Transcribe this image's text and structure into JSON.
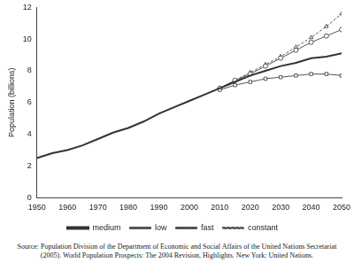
{
  "chart_data": {
    "type": "line",
    "y_label": "Population (billions)",
    "source": "Source: Population Division of the Department of Economic and Social Affairs of the United Nations Secretariat (2005). World Population Prospects: The 2004 Revision, Highlights. New York: United Nations.",
    "x": [
      1950,
      1955,
      1960,
      1965,
      1970,
      1975,
      1980,
      1985,
      1990,
      1995,
      2000,
      2005,
      2010,
      2015,
      2020,
      2025,
      2030,
      2035,
      2040,
      2045,
      2050
    ],
    "series": [
      {
        "name": "medium",
        "color": "#333333",
        "marker": "none",
        "line_style": "solid",
        "values": [
          2.5,
          2.8,
          3.0,
          3.3,
          3.7,
          4.1,
          4.4,
          4.8,
          5.3,
          5.7,
          6.1,
          6.5,
          6.9,
          7.3,
          7.7,
          8.0,
          8.3,
          8.5,
          8.8,
          8.9,
          9.1
        ]
      },
      {
        "name": "low",
        "color": "#555555",
        "marker": "square",
        "line_style": "solid",
        "values": [
          null,
          null,
          null,
          null,
          null,
          null,
          null,
          null,
          null,
          null,
          null,
          null,
          6.8,
          7.1,
          7.3,
          7.5,
          7.6,
          7.7,
          7.8,
          7.8,
          7.7
        ]
      },
      {
        "name": "fast",
        "color": "#555555",
        "marker": "circle",
        "line_style": "solid",
        "values": [
          null,
          null,
          null,
          null,
          null,
          null,
          null,
          null,
          null,
          null,
          null,
          null,
          6.9,
          7.4,
          7.8,
          8.3,
          8.8,
          9.3,
          9.8,
          10.2,
          10.6
        ]
      },
      {
        "name": "constant",
        "color": "#555555",
        "marker": "triangle",
        "line_style": "dashed",
        "values": [
          null,
          null,
          null,
          null,
          null,
          null,
          null,
          null,
          null,
          null,
          null,
          null,
          6.9,
          7.4,
          7.9,
          8.4,
          8.9,
          9.5,
          10.1,
          10.8,
          11.6
        ]
      }
    ],
    "xlim": [
      1950,
      2050
    ],
    "xticks": [
      1950,
      1960,
      1970,
      1980,
      1990,
      2000,
      2010,
      2020,
      2030,
      2040,
      2050
    ],
    "ylim": [
      0,
      12
    ],
    "yticks": [
      0,
      2,
      4,
      6,
      8,
      10,
      12
    ],
    "grid": false,
    "legend": "bottom"
  }
}
